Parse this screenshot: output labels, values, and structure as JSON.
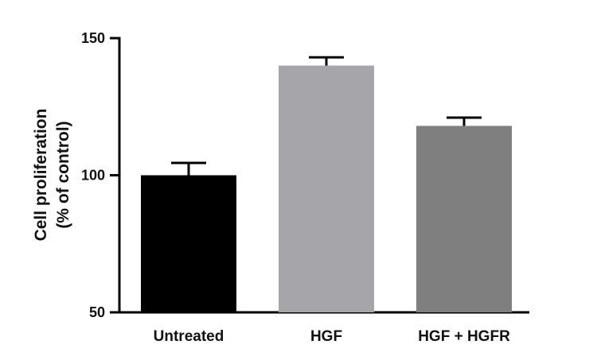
{
  "chart_data": {
    "type": "bar",
    "categories": [
      "Untreated",
      "HGF",
      "HGF + HGFR"
    ],
    "values": [
      100,
      140,
      118
    ],
    "errors": [
      4.5,
      3,
      3
    ],
    "colors": [
      "#000000",
      "#a6a5aa",
      "#7f7f7f"
    ],
    "title": "",
    "xlabel": "",
    "ylabel_lines": [
      "Cell proliferation",
      "(% of control)"
    ],
    "ylim": [
      50,
      150
    ],
    "yticks": [
      50,
      100,
      150
    ],
    "grid": false,
    "error_bars": "upper only"
  }
}
